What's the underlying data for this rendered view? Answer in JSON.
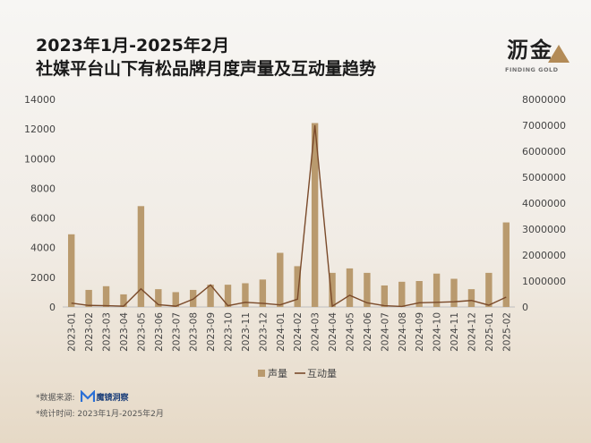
{
  "header": {
    "title_line1": "2023年1月-2025年2月",
    "title_line2": "社媒平台山下有松品牌月度声量及互动量趋势"
  },
  "logo": {
    "name": "沥金",
    "subtitle": "FINDING GOLD"
  },
  "footer": {
    "source_label": "*数据来源:",
    "source_name": "魔镜洞察",
    "period": "*统计时间: 2023年1月-2025年2月"
  },
  "colors": {
    "bar": "#b99a6e",
    "line": "#7a4a2a",
    "grid": "#d9d9d9",
    "text": "#444444"
  },
  "chart_data": {
    "type": "bar",
    "categories": [
      "2023-01",
      "2023-02",
      "2023-03",
      "2023-04",
      "2023-05",
      "2023-06",
      "2023-07",
      "2023-08",
      "2023-09",
      "2023-10",
      "2023-11",
      "2023-12",
      "2024-01",
      "2024-02",
      "2024-03",
      "2024-04",
      "2024-05",
      "2024-06",
      "2024-07",
      "2024-08",
      "2024-09",
      "2024-10",
      "2024-11",
      "2024-12",
      "2025-01",
      "2025-02"
    ],
    "series": [
      {
        "name": "声量",
        "type": "bar",
        "axis": "left",
        "values": [
          4900,
          1150,
          1400,
          850,
          6800,
          1200,
          1000,
          1150,
          1500,
          1500,
          1600,
          1850,
          3650,
          2750,
          12400,
          2300,
          2600,
          2300,
          1450,
          1700,
          1750,
          2250,
          1900,
          1200,
          2300,
          5700
        ]
      },
      {
        "name": "互动量",
        "type": "line",
        "axis": "right",
        "values": [
          150000,
          60000,
          50000,
          30000,
          700000,
          90000,
          30000,
          300000,
          850000,
          50000,
          180000,
          140000,
          80000,
          300000,
          7000000,
          30000,
          450000,
          160000,
          50000,
          20000,
          160000,
          180000,
          200000,
          250000,
          70000,
          380000
        ]
      }
    ],
    "y_left": {
      "min": 0,
      "max": 14000,
      "ticks": [
        "0",
        "2000",
        "4000",
        "6000",
        "8000",
        "10000",
        "12000",
        "14000"
      ]
    },
    "y_right": {
      "min": 0,
      "max": 8000000,
      "ticks": [
        "0",
        "1000000",
        "2000000",
        "3000000",
        "4000000",
        "5000000",
        "6000000",
        "7000000",
        "8000000"
      ]
    },
    "legend": {
      "position": "bottom",
      "items": [
        "声量",
        "互动量"
      ]
    },
    "grid": false
  }
}
